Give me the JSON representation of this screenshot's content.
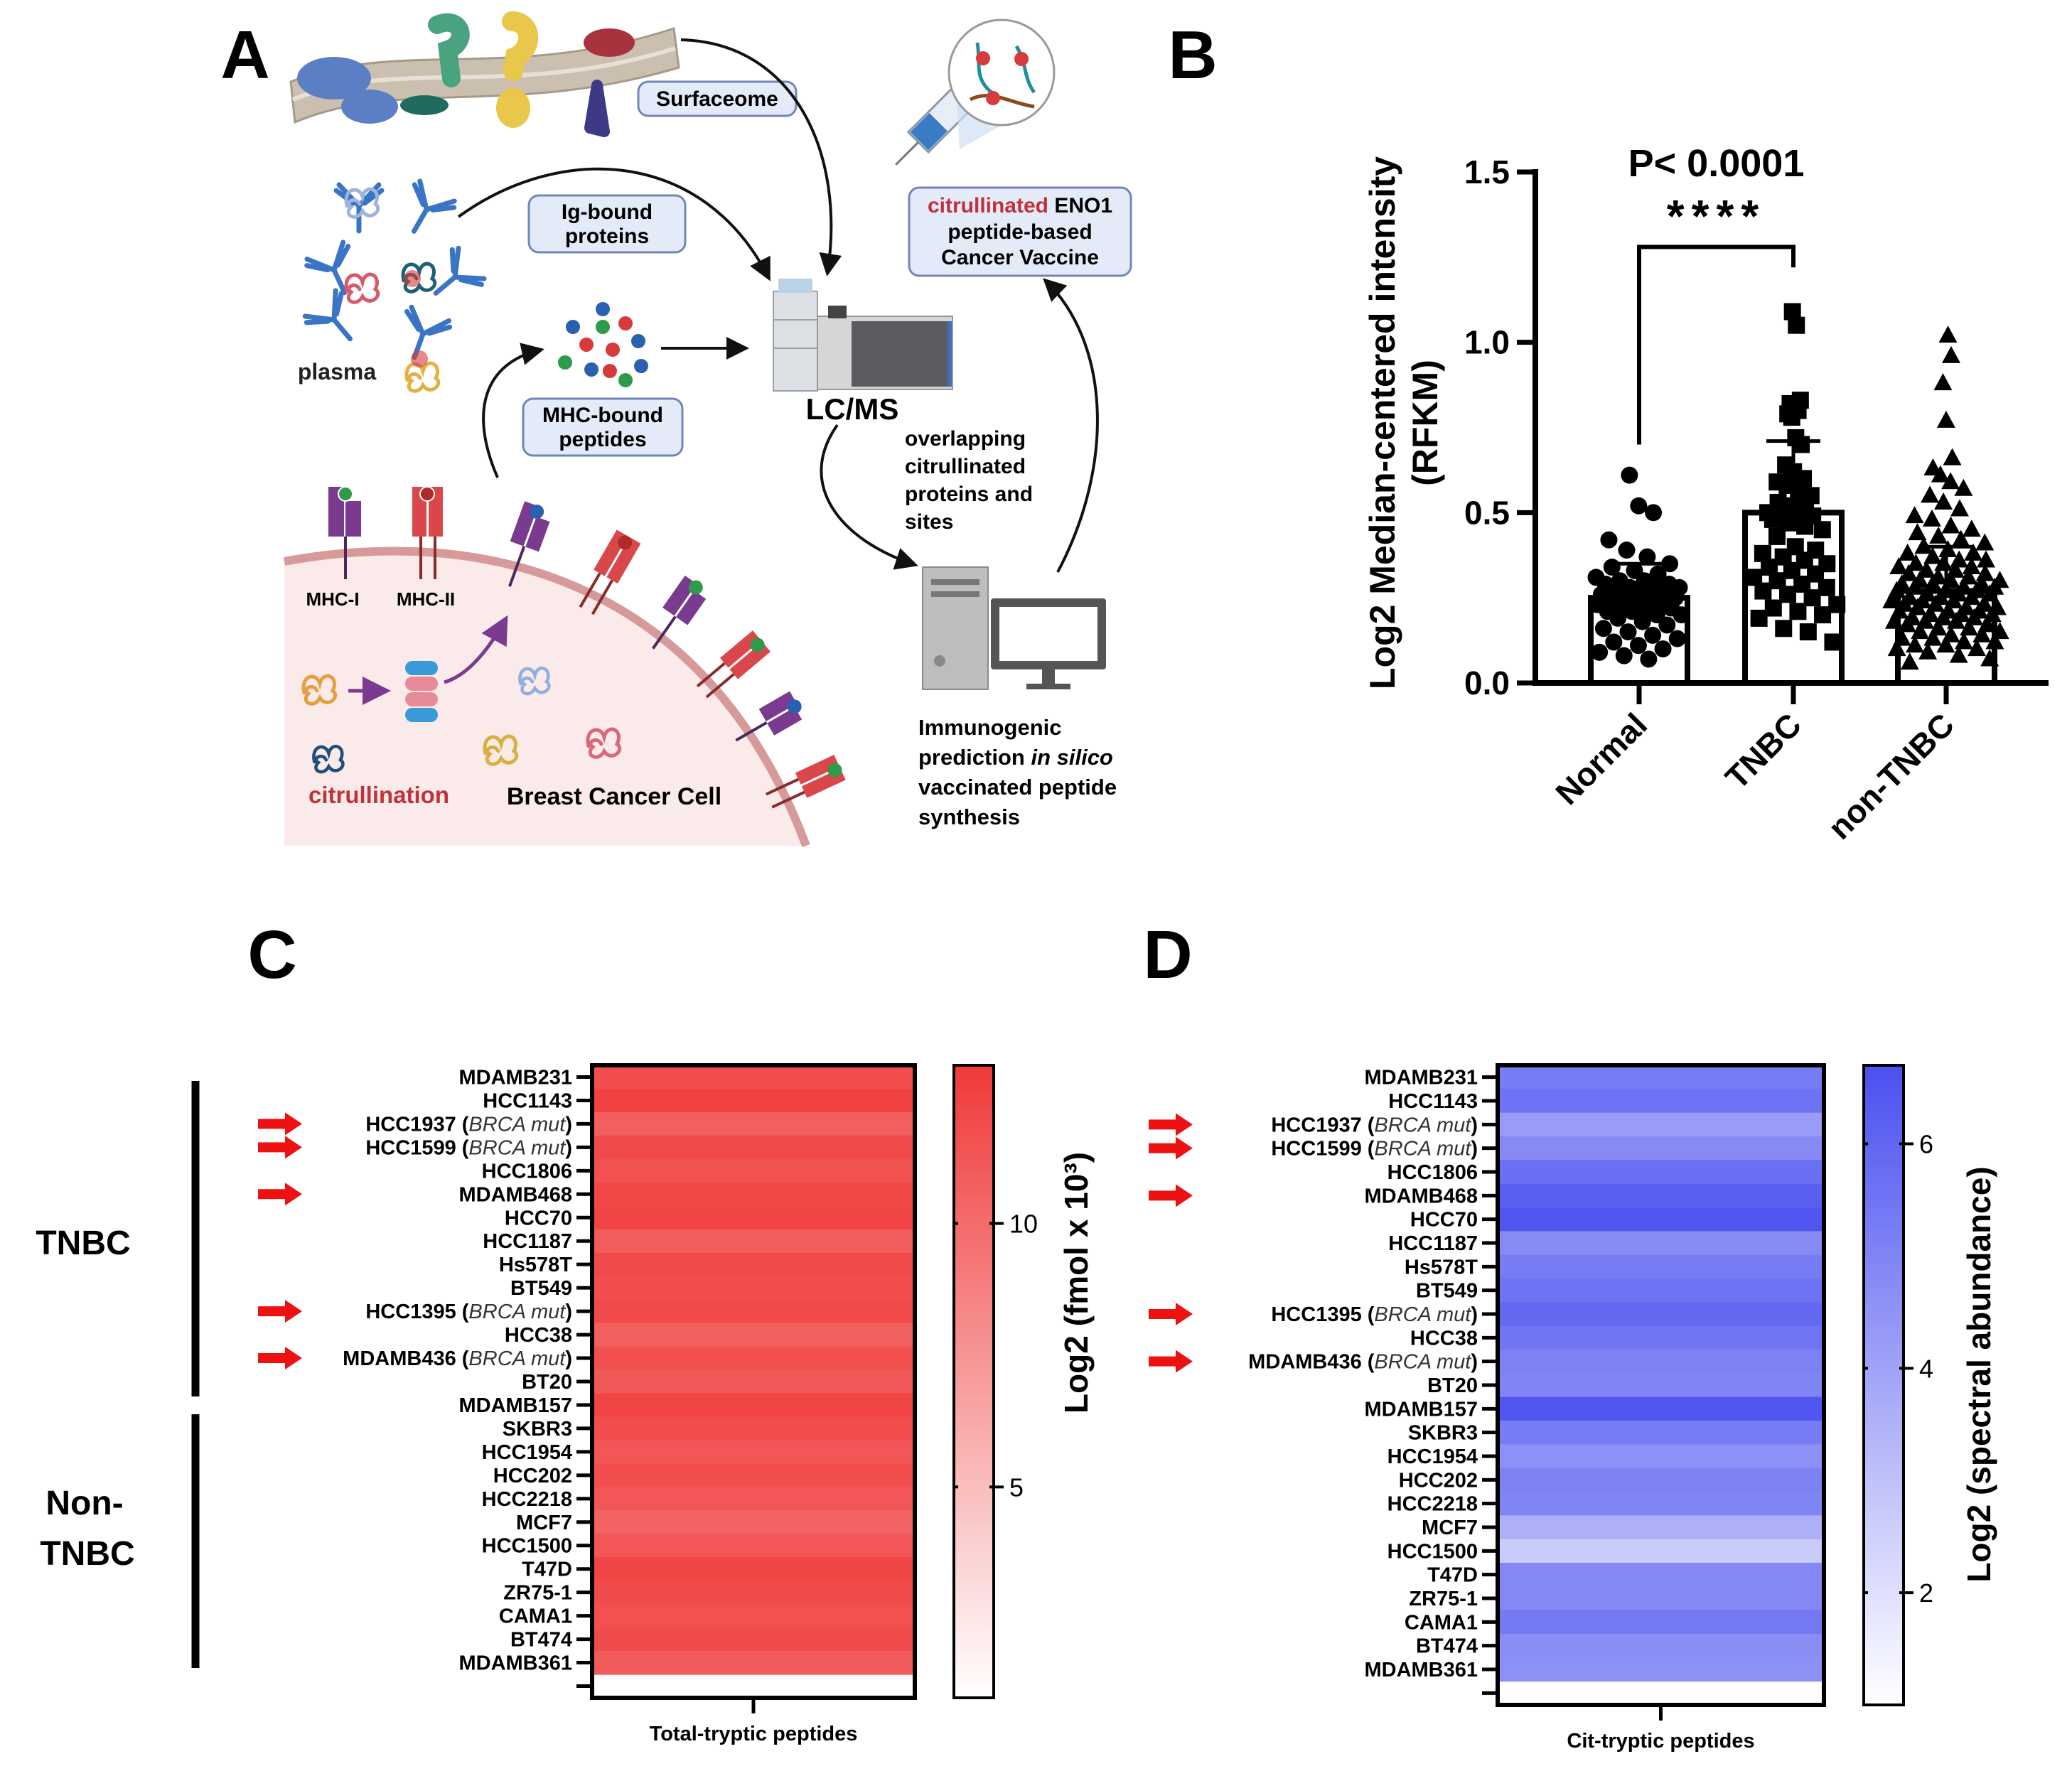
{
  "panel_labels": {
    "a": "A",
    "b": "B",
    "c": "C",
    "d": "D"
  },
  "panel_a": {
    "surfaceome": "Surfaceome",
    "ig_bound": [
      "Ig-bound",
      "proteins"
    ],
    "mhc_bound": [
      "MHC-bound",
      "peptides"
    ],
    "vaccine": {
      "highlight": "citrullinated",
      "rest": " ENO1",
      "line2": "peptide-based",
      "line3": "Cancer Vaccine"
    },
    "plasma": "plasma",
    "lcms": "LC/MS",
    "overlapping": [
      "overlapping",
      "citrullinated",
      "proteins and",
      "sites"
    ],
    "immunogenic": {
      "line1": "Immunogenic",
      "line2a": "prediction ",
      "line2b": "in silico",
      "line3": "vaccinated peptide",
      "line4": "synthesis"
    },
    "mhc_i": "MHC-I",
    "mhc_ii": "MHC-II",
    "citrullination": "citrullination",
    "cell_label": "Breast Cancer Cell",
    "colors": {
      "highlight": "#c0323a",
      "box_fill": "#e4ebf8",
      "box_stroke": "#6f86b8",
      "cell_fill": "#fbeaea",
      "membrane": "#d79a9a"
    }
  },
  "groups": {
    "tnbc": "TNBC",
    "non_line1": "Non-",
    "non_line2": "TNBC"
  },
  "chart_data": [
    {
      "type": "bar",
      "panel": "B",
      "categories": [
        "Normal",
        "TNBC",
        "non-TNBC"
      ],
      "ylabel": [
        "Log2 Median-centered intensity",
        "(RFKM)"
      ],
      "ylim": [
        0,
        1.5
      ],
      "yticks": [
        "0.0",
        "0.5",
        "1.0",
        "1.5"
      ],
      "ytick_values": [
        0,
        0.5,
        1.0,
        1.5
      ],
      "grid": false,
      "series": [
        {
          "values": [
            0.25,
            0.5,
            0.27
          ],
          "sd_upper": [
            0.35,
            0.71,
            0.4
          ]
        }
      ],
      "points": [
        {
          "category": "Normal",
          "marker": "circle",
          "values": [
            0.61,
            0.52,
            0.5,
            0.42,
            0.39,
            0.37,
            0.35,
            0.34,
            0.33,
            0.32,
            0.31,
            0.3,
            0.3,
            0.29,
            0.29,
            0.28,
            0.28,
            0.28,
            0.27,
            0.27,
            0.27,
            0.26,
            0.26,
            0.25,
            0.25,
            0.25,
            0.24,
            0.24,
            0.23,
            0.23,
            0.22,
            0.22,
            0.21,
            0.21,
            0.2,
            0.2,
            0.19,
            0.18,
            0.17,
            0.16,
            0.15,
            0.14,
            0.13,
            0.12,
            0.11,
            0.1,
            0.09,
            0.08,
            0.07
          ]
        },
        {
          "category": "TNBC",
          "marker": "square",
          "values": [
            1.09,
            1.05,
            0.83,
            0.82,
            0.81,
            0.8,
            0.79,
            0.78,
            0.72,
            0.7,
            0.64,
            0.62,
            0.6,
            0.59,
            0.58,
            0.56,
            0.55,
            0.53,
            0.52,
            0.51,
            0.5,
            0.5,
            0.49,
            0.49,
            0.48,
            0.47,
            0.46,
            0.45,
            0.43,
            0.4,
            0.39,
            0.38,
            0.37,
            0.36,
            0.35,
            0.34,
            0.33,
            0.32,
            0.31,
            0.3,
            0.29,
            0.28,
            0.27,
            0.26,
            0.25,
            0.23,
            0.22,
            0.21,
            0.2,
            0.19,
            0.16,
            0.15,
            0.12
          ]
        },
        {
          "category": "non-TNBC",
          "marker": "triangle",
          "values": [
            1.02,
            0.96,
            0.88,
            0.77,
            0.66,
            0.63,
            0.61,
            0.59,
            0.57,
            0.55,
            0.53,
            0.51,
            0.49,
            0.48,
            0.46,
            0.45,
            0.44,
            0.43,
            0.42,
            0.41,
            0.4,
            0.39,
            0.38,
            0.38,
            0.37,
            0.36,
            0.36,
            0.35,
            0.35,
            0.34,
            0.34,
            0.33,
            0.33,
            0.32,
            0.32,
            0.31,
            0.31,
            0.3,
            0.3,
            0.3,
            0.29,
            0.29,
            0.29,
            0.28,
            0.28,
            0.28,
            0.27,
            0.27,
            0.27,
            0.26,
            0.26,
            0.26,
            0.25,
            0.25,
            0.25,
            0.24,
            0.24,
            0.24,
            0.23,
            0.23,
            0.23,
            0.22,
            0.22,
            0.22,
            0.21,
            0.21,
            0.21,
            0.2,
            0.2,
            0.2,
            0.19,
            0.19,
            0.19,
            0.18,
            0.18,
            0.18,
            0.17,
            0.17,
            0.16,
            0.16,
            0.15,
            0.15,
            0.14,
            0.14,
            0.13,
            0.13,
            0.12,
            0.12,
            0.11,
            0.11,
            0.1,
            0.1,
            0.09,
            0.08,
            0.07,
            0.06
          ]
        }
      ],
      "annotation": {
        "p_value": "P< 0.0001",
        "stars": "****",
        "between": [
          "Normal",
          "TNBC"
        ]
      }
    },
    {
      "type": "heatmap",
      "panel": "C",
      "column": "Total-tryptic peptides",
      "colorbar_label": "Log2 (fmol x 10³)",
      "colorbar_range": [
        1,
        13
      ],
      "colorbar_ticks": [
        {
          "value": 5,
          "label": "5"
        },
        {
          "value": 10,
          "label": "10"
        }
      ],
      "color_low": "#ffffff",
      "color_high": "#f03a3a",
      "rows": [
        {
          "name": "MDAMB231",
          "value": 11.8
        },
        {
          "name": "HCC1143",
          "value": 12.6
        },
        {
          "name": "HCC1937",
          "annotation": "BRCA mut",
          "value": 10.8,
          "arrow": true
        },
        {
          "name": "HCC1599",
          "annotation": "BRCA mut",
          "value": 12.0,
          "arrow": true
        },
        {
          "name": "HCC1806",
          "value": 11.6
        },
        {
          "name": "MDAMB468",
          "value": 12.2,
          "arrow": true
        },
        {
          "name": "HCC70",
          "value": 12.3
        },
        {
          "name": "HCC1187",
          "value": 10.9
        },
        {
          "name": "Hs578T",
          "value": 12.0
        },
        {
          "name": "BT549",
          "value": 11.8
        },
        {
          "name": "HCC1395",
          "annotation": "BRCA mut",
          "value": 12.0,
          "arrow": true
        },
        {
          "name": "HCC38",
          "value": 10.7
        },
        {
          "name": "MDAMB436",
          "annotation": "BRCA mut",
          "value": 11.7,
          "arrow": true
        },
        {
          "name": "BT20",
          "value": 11.2
        },
        {
          "name": "MDAMB157",
          "value": 12.4
        },
        {
          "name": "SKBR3",
          "value": 11.8
        },
        {
          "name": "HCC1954",
          "value": 11.3
        },
        {
          "name": "HCC202",
          "value": 11.8
        },
        {
          "name": "HCC2218",
          "value": 11.3
        },
        {
          "name": "MCF7",
          "value": 10.5
        },
        {
          "name": "HCC1500",
          "value": 11.3
        },
        {
          "name": "T47D",
          "value": 12.4
        },
        {
          "name": "ZR75-1",
          "value": 11.9
        },
        {
          "name": "CAMA1",
          "value": 11.6
        },
        {
          "name": "BT474",
          "value": 11.9
        },
        {
          "name": "MDAMB361",
          "value": 11.0
        }
      ]
    },
    {
      "type": "heatmap",
      "panel": "D",
      "column": "Cit-tryptic peptides",
      "colorbar_label": "Log2 (spectral abundance)",
      "colorbar_range": [
        1,
        6.7
      ],
      "colorbar_ticks": [
        {
          "value": 2,
          "label": "2"
        },
        {
          "value": 4,
          "label": "4"
        },
        {
          "value": 6,
          "label": "6"
        }
      ],
      "color_low": "#ffffff",
      "color_high": "#4b50f0",
      "rows": [
        {
          "name": "MDAMB231",
          "value": 5.3
        },
        {
          "name": "HCC1143",
          "value": 5.6
        },
        {
          "name": "HCC1937",
          "annotation": "BRCA mut",
          "value": 4.2,
          "arrow": true
        },
        {
          "name": "HCC1599",
          "annotation": "BRCA mut",
          "value": 4.8,
          "arrow": true
        },
        {
          "name": "HCC1806",
          "value": 5.7
        },
        {
          "name": "MDAMB468",
          "value": 6.2,
          "arrow": true
        },
        {
          "name": "HCC70",
          "value": 6.5
        },
        {
          "name": "HCC1187",
          "value": 4.8
        },
        {
          "name": "Hs578T",
          "value": 5.3
        },
        {
          "name": "BT549",
          "value": 5.6
        },
        {
          "name": "HCC1395",
          "annotation": "BRCA mut",
          "value": 5.9,
          "arrow": true
        },
        {
          "name": "HCC38",
          "value": 5.5
        },
        {
          "name": "MDAMB436",
          "annotation": "BRCA mut",
          "value": 5.1,
          "arrow": true
        },
        {
          "name": "BT20",
          "value": 5.0
        },
        {
          "name": "MDAMB157",
          "value": 6.5
        },
        {
          "name": "SKBR3",
          "value": 5.3
        },
        {
          "name": "HCC1954",
          "value": 4.6
        },
        {
          "name": "HCC202",
          "value": 5.1
        },
        {
          "name": "HCC2218",
          "value": 5.0
        },
        {
          "name": "MCF7",
          "value": 3.6
        },
        {
          "name": "HCC1500",
          "value": 2.7
        },
        {
          "name": "T47D",
          "value": 4.9
        },
        {
          "name": "ZR75-1",
          "value": 4.9
        },
        {
          "name": "CAMA1",
          "value": 5.4
        },
        {
          "name": "BT474",
          "value": 4.7
        },
        {
          "name": "MDAMB361",
          "value": 4.6
        }
      ]
    }
  ]
}
